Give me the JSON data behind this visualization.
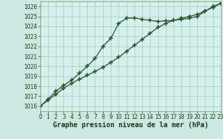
{
  "title": "Graphe pression niveau de la mer (hPa)",
  "background_color": "#cce8e0",
  "plot_bg_color": "#d6f0ee",
  "grid_color": "#99ccbb",
  "line_color": "#2d5a2d",
  "marker": "+",
  "marker_size": 4,
  "marker_lw": 1.2,
  "line_width": 1.0,
  "xlim": [
    0,
    23
  ],
  "ylim": [
    1015.5,
    1026.5
  ],
  "yticks": [
    1016,
    1017,
    1018,
    1019,
    1020,
    1021,
    1022,
    1023,
    1024,
    1025,
    1026
  ],
  "xticks": [
    0,
    1,
    2,
    3,
    4,
    5,
    6,
    7,
    8,
    9,
    10,
    11,
    12,
    13,
    14,
    15,
    16,
    17,
    18,
    19,
    20,
    21,
    22,
    23
  ],
  "series1": [
    1016.0,
    1016.7,
    1017.5,
    1018.1,
    1018.6,
    1019.3,
    1020.0,
    1020.8,
    1022.0,
    1022.8,
    1024.3,
    1024.8,
    1024.85,
    1024.7,
    1024.6,
    1024.5,
    1024.55,
    1024.6,
    1024.7,
    1024.8,
    1025.0,
    1025.5,
    1026.0,
    1026.3
  ],
  "series2": [
    1016.0,
    1016.6,
    1017.2,
    1017.8,
    1018.3,
    1018.7,
    1019.1,
    1019.5,
    1019.9,
    1020.4,
    1020.9,
    1021.5,
    1022.1,
    1022.7,
    1023.3,
    1023.9,
    1024.3,
    1024.6,
    1024.8,
    1025.0,
    1025.2,
    1025.55,
    1025.9,
    1026.3
  ],
  "ylabel_fontsize": 5.5,
  "xlabel_fontsize": 7.0,
  "tick_fontsize": 5.5,
  "tick_color": "#1a3a1a",
  "spine_color": "#669966"
}
